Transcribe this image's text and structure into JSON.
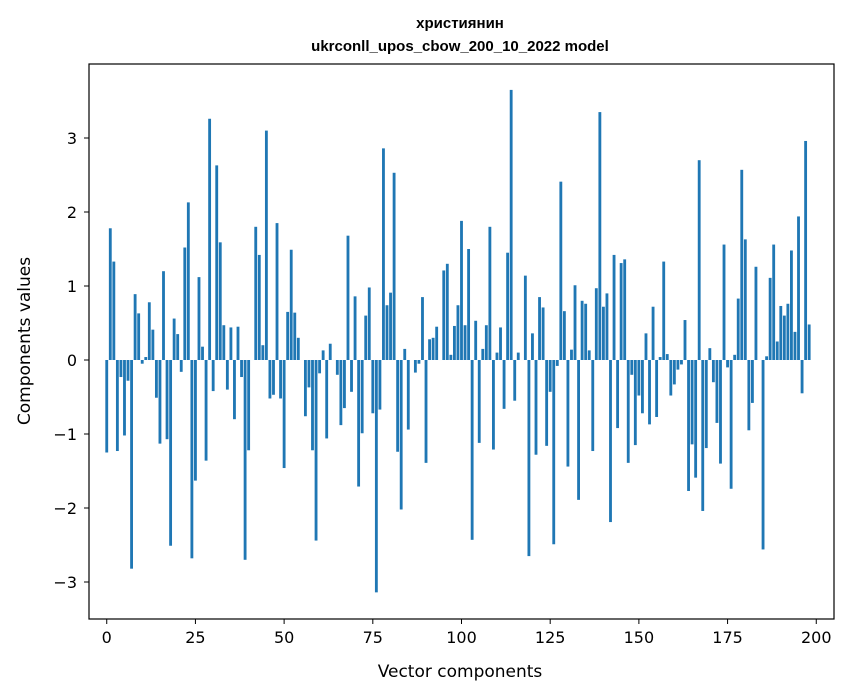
{
  "chart_data": {
    "type": "bar",
    "title": [
      "християнин",
      "ukrconll_upos_cbow_200_10_2022 model"
    ],
    "xlabel": "Vector components",
    "ylabel": "Components values",
    "xlim": [
      -5,
      205
    ],
    "ylim": [
      -3.5,
      4.0
    ],
    "xticks": [
      0,
      25,
      50,
      75,
      100,
      125,
      150,
      175,
      200
    ],
    "yticks": [
      -3,
      -2,
      -1,
      0,
      1,
      2,
      3
    ],
    "ytick_labels": [
      "−3",
      "−2",
      "−1",
      "0",
      "1",
      "2",
      "3"
    ],
    "bar_color": "#1f77b4",
    "values": [
      -1.25,
      1.78,
      1.33,
      -1.23,
      -0.23,
      -1.02,
      -0.28,
      -2.82,
      0.89,
      0.63,
      -0.05,
      0.04,
      0.78,
      0.41,
      -0.51,
      -1.13,
      1.2,
      -1.07,
      -2.51,
      0.56,
      0.35,
      -0.16,
      1.52,
      2.13,
      -2.68,
      -1.63,
      1.12,
      0.18,
      -1.36,
      3.26,
      -0.42,
      2.63,
      1.59,
      0.47,
      -0.4,
      0.44,
      -0.8,
      0.45,
      -0.23,
      -2.7,
      -1.22,
      0.0,
      1.8,
      1.42,
      0.2,
      3.1,
      -0.52,
      -0.47,
      1.85,
      -0.52,
      -1.46,
      0.65,
      1.49,
      0.64,
      0.3,
      0.0,
      -0.76,
      -0.37,
      -1.22,
      -2.44,
      -0.18,
      0.13,
      -1.06,
      0.22,
      0.0,
      -0.2,
      -0.88,
      -0.65,
      1.68,
      -0.43,
      0.86,
      -1.71,
      -0.99,
      0.6,
      0.98,
      -0.72,
      -3.14,
      -0.67,
      2.86,
      0.74,
      0.91,
      2.53,
      -1.24,
      -2.02,
      0.15,
      -0.94,
      0.0,
      -0.17,
      -0.05,
      0.85,
      -1.39,
      0.28,
      0.3,
      0.45,
      0.0,
      1.21,
      1.3,
      0.07,
      0.46,
      0.74,
      1.88,
      0.47,
      1.5,
      -2.43,
      0.53,
      -1.12,
      0.15,
      0.47,
      1.8,
      -1.21,
      0.1,
      0.44,
      -0.66,
      1.45,
      3.65,
      -0.55,
      0.1,
      0.0,
      1.14,
      -2.65,
      0.36,
      -1.28,
      0.85,
      0.71,
      -1.16,
      -0.43,
      -2.49,
      -0.08,
      2.41,
      0.66,
      -1.44,
      0.14,
      1.01,
      -1.89,
      0.8,
      0.76,
      0.13,
      -1.23,
      0.97,
      3.35,
      0.72,
      0.9,
      -2.19,
      1.42,
      -0.92,
      1.31,
      1.36,
      -1.39,
      -0.2,
      -1.15,
      -0.48,
      -0.72,
      0.36,
      -0.87,
      0.72,
      -0.77,
      0.04,
      1.33,
      0.08,
      -0.48,
      -0.33,
      -0.13,
      -0.06,
      0.54,
      -1.77,
      -1.14,
      -1.59,
      2.7,
      -2.04,
      -1.19,
      0.16,
      -0.3,
      -0.85,
      -1.4,
      1.56,
      -0.1,
      -1.74,
      0.07,
      0.83,
      2.57,
      1.63,
      -0.95,
      -0.58,
      1.26,
      0.0,
      -2.56,
      0.05,
      1.11,
      1.56,
      0.25,
      0.73,
      0.6,
      0.76,
      1.48,
      0.38,
      1.94,
      -0.45,
      2.96,
      0.48
    ]
  }
}
